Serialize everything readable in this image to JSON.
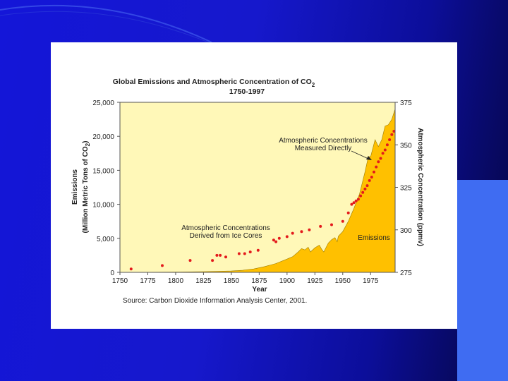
{
  "slide": {
    "background_colors": [
      "#1416d8",
      "#0c0e9a",
      "#050640"
    ],
    "panel_color": "#3f6cf2",
    "card_color": "#ffffff"
  },
  "chart_data": {
    "type": "area",
    "title": "Global Emissions and Atmospheric Concentration of CO2",
    "title_main": "Global Emissions and Atmospheric Concentration of CO",
    "title_subscript": "2",
    "subtitle": "1750-1997",
    "xlabel": "Year",
    "ylabel_left_line1": "Emissions",
    "ylabel_left_line2_main": "(Million Metric Tons of CO",
    "ylabel_left_line2_sub": "2",
    "ylabel_left_line2_end": ")",
    "ylabel_right": "Atmospheric Concentration (ppmv)",
    "xlim": [
      1750,
      1997
    ],
    "ylim_left": [
      0,
      25000
    ],
    "ylim_right": [
      275,
      375
    ],
    "x_ticks": [
      1750,
      1775,
      1800,
      1825,
      1850,
      1875,
      1900,
      1925,
      1950,
      1975
    ],
    "x_tick_labels": [
      "1750",
      "1775",
      "1800",
      "1825",
      "1850",
      "1875",
      "1900",
      "1925",
      "1950",
      "1975"
    ],
    "y_left_ticks": [
      0,
      5000,
      10000,
      15000,
      20000,
      25000
    ],
    "y_left_tick_labels": [
      "0",
      "5,000",
      "10,000",
      "15,000",
      "20,000",
      "25,000"
    ],
    "y_right_ticks": [
      275,
      300,
      325,
      350,
      375
    ],
    "y_right_tick_labels": [
      "275",
      "300",
      "325",
      "350",
      "375"
    ],
    "plot_background": "#fff8b8",
    "emissions_color": "#ffc000",
    "concentration_color": "#e31a1c",
    "emissions_label": "Emissions",
    "emissions": {
      "x": [
        1750,
        1775,
        1800,
        1825,
        1850,
        1860,
        1870,
        1880,
        1890,
        1900,
        1905,
        1910,
        1913,
        1916,
        1919,
        1921,
        1925,
        1929,
        1931,
        1933,
        1937,
        1940,
        1943,
        1945,
        1946,
        1950,
        1955,
        1960,
        1965,
        1970,
        1973,
        1975,
        1979,
        1982,
        1985,
        1988,
        1991,
        1994,
        1997
      ],
      "y": [
        10,
        25,
        40,
        100,
        200,
        300,
        500,
        850,
        1300,
        1950,
        2300,
        3000,
        3500,
        3300,
        3700,
        3000,
        3600,
        4000,
        3400,
        3000,
        4300,
        4800,
        5100,
        4500,
        5300,
        6000,
        7500,
        9400,
        11500,
        14800,
        17000,
        17000,
        19500,
        18500,
        19500,
        21500,
        21700,
        22500,
        24000
      ]
    },
    "concentration": {
      "x": [
        1760,
        1788,
        1813,
        1833,
        1837,
        1840,
        1845,
        1857,
        1862,
        1867,
        1874,
        1888,
        1890,
        1893,
        1900,
        1905,
        1913,
        1920,
        1930,
        1940,
        1950,
        1955,
        1958,
        1960,
        1962,
        1964,
        1966,
        1968,
        1970,
        1972,
        1974,
        1976,
        1978,
        1980,
        1982,
        1984,
        1986,
        1988,
        1990,
        1992,
        1994,
        1996
      ],
      "y": [
        277,
        279,
        282,
        282,
        285,
        285,
        284,
        286,
        286,
        287,
        288,
        294,
        293,
        295,
        296,
        298,
        299,
        300,
        302,
        303,
        305,
        310,
        315,
        316,
        317,
        318,
        320,
        322,
        324,
        326,
        329,
        331,
        334,
        337,
        340,
        342,
        345,
        347,
        350,
        353,
        356,
        358
      ]
    },
    "annotations": [
      {
        "text_line1": "Atmospheric Concentrations",
        "text_line2": "Measured Directly"
      },
      {
        "text_line1": "Atmospheric Concentrations",
        "text_line2": "Derived from Ice Cores"
      }
    ],
    "source": "Source: Carbon Dioxide Information Analysis Center, 2001."
  }
}
